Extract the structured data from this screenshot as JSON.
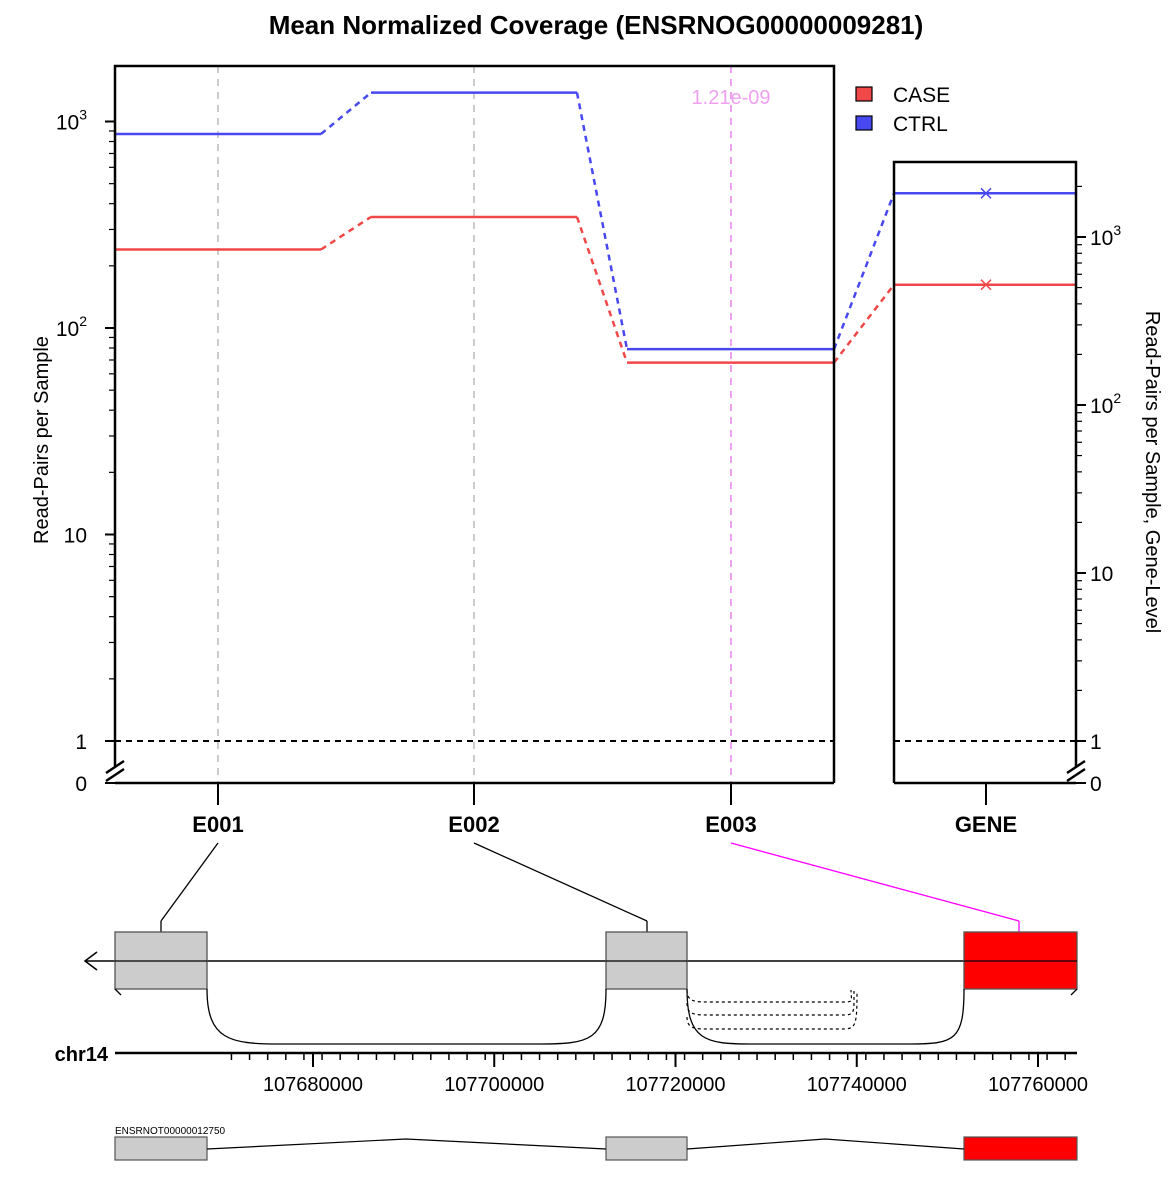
{
  "chart_data": {
    "type": "line",
    "title": "Mean Normalized Coverage (ENSRNOG00000009281)",
    "ylabel": "Read-Pairs per Sample",
    "ylabel_right": "Read-Pairs per Sample, Gene-Level",
    "yscale": "log",
    "y_ticks_left": [
      {
        "value": 0,
        "label": "0"
      },
      {
        "value": 1,
        "label": "1"
      },
      {
        "value": 10,
        "label": "10"
      },
      {
        "value": 100,
        "label": "10",
        "sup": "2"
      },
      {
        "value": 1000,
        "label": "10",
        "sup": "3"
      }
    ],
    "y_ticks_right": [
      {
        "value": 0,
        "label": "0"
      },
      {
        "value": 1,
        "label": "1"
      },
      {
        "value": 10,
        "label": "10"
      },
      {
        "value": 100,
        "label": "10",
        "sup": "2"
      },
      {
        "value": 1000,
        "label": "10",
        "sup": "3"
      }
    ],
    "categories": [
      "E001",
      "E002",
      "E003"
    ],
    "gene_category": "GENE",
    "legend": {
      "position": "top-right",
      "entries": [
        {
          "name": "CASE",
          "color": "#f04848"
        },
        {
          "name": "CTRL",
          "color": "#4848f0"
        }
      ]
    },
    "series": [
      {
        "name": "CASE",
        "color": "#f04848",
        "values": [
          240,
          345,
          68
        ],
        "gene_value": 520
      },
      {
        "name": "CTRL",
        "color": "#4848f0",
        "values": [
          870,
          1380,
          79
        ],
        "gene_value": 1820
      }
    ],
    "annotation": {
      "text": "1.21e-09",
      "category": "E003",
      "color": "#f0a0f0"
    },
    "significant_exon": "E003",
    "reference_line": 1
  },
  "gene_track": {
    "chromosome": "chr14",
    "strand": "-",
    "axis_ticks": [
      {
        "value": 107680000,
        "label": "107680000"
      },
      {
        "value": 107700000,
        "label": "107700000"
      },
      {
        "value": 107720000,
        "label": "107720000"
      },
      {
        "value": 107740000,
        "label": "107740000"
      },
      {
        "value": 107760000,
        "label": "107760000"
      }
    ],
    "exons": [
      {
        "id": "E001",
        "color": "#cccccc"
      },
      {
        "id": "E002",
        "color": "#cccccc"
      },
      {
        "id": "E003",
        "color": "#ff0000"
      }
    ],
    "transcript": {
      "name": "ENSRNOT00000012750"
    }
  }
}
